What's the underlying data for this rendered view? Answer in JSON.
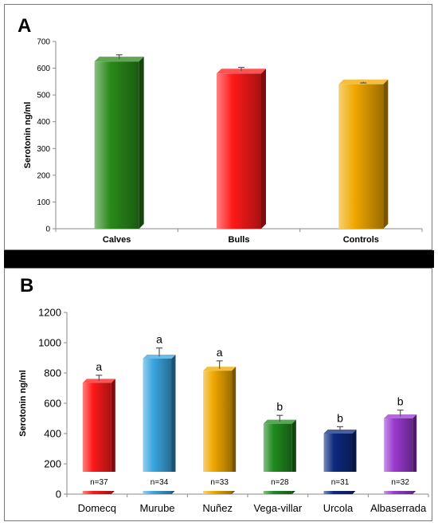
{
  "panels": {
    "a": {
      "letter": "A"
    },
    "b": {
      "letter": "B"
    }
  },
  "colors": {
    "frame_border": "#7a7a7a",
    "divider": "#000000",
    "axis": "#8a8a8a",
    "error_bar": "#555555"
  },
  "chart_data": [
    {
      "type": "bar",
      "panel": "A",
      "ylabel": "Serotonin ng/ml",
      "xlabel": "",
      "ylim": [
        0,
        700
      ],
      "yticks": [
        0,
        100,
        200,
        300,
        400,
        500,
        600,
        700
      ],
      "grid": false,
      "legend": "none",
      "categories": [
        "Calves",
        "Bulls",
        "Controls"
      ],
      "values": [
        625,
        580,
        540
      ],
      "errors": [
        25,
        23,
        5
      ],
      "bar_colors": [
        "#2a8a1a",
        "#ff1a1a",
        "#f0a800"
      ]
    },
    {
      "type": "bar",
      "panel": "B",
      "ylabel": "Serotonin ng/ml",
      "xlabel": "",
      "ylim": [
        0,
        1200
      ],
      "yticks": [
        0,
        200,
        400,
        600,
        800,
        1000,
        1200
      ],
      "grid": false,
      "legend": "none",
      "categories": [
        "Domecq",
        "Murube",
        "Nuñez",
        "Vega-villar",
        "Urcola",
        "Albaserrada"
      ],
      "values": [
        735,
        895,
        815,
        465,
        400,
        500
      ],
      "errors": [
        50,
        70,
        65,
        55,
        45,
        55
      ],
      "letters": [
        "a",
        "a",
        "a",
        "b",
        "b",
        "b"
      ],
      "n_labels": [
        "n=37",
        "n=34",
        "n=33",
        "n=28",
        "n=31",
        "n=32"
      ],
      "bar_colors": [
        "#ff1a1a",
        "#3aa6e0",
        "#f0a800",
        "#1f8a1f",
        "#0e2a80",
        "#9a3ad0"
      ]
    }
  ]
}
